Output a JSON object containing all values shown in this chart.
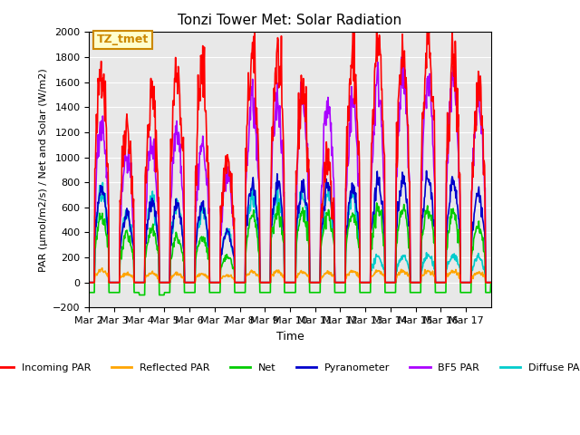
{
  "title": "Tonzi Tower Met: Solar Radiation",
  "xlabel": "Time",
  "ylabel": "PAR (μmol/m2/s) / Net and Solar (W/m2)",
  "ylim": [
    -200,
    2000
  ],
  "yticks": [
    -200,
    0,
    200,
    400,
    600,
    800,
    1000,
    1200,
    1400,
    1600,
    1800,
    2000
  ],
  "xtick_labels": [
    "Mar 2",
    "Mar 3",
    "Mar 4",
    "Mar 5",
    "Mar 6",
    "Mar 7",
    "Mar 8",
    "Mar 9",
    "Mar 10",
    "Mar 11",
    "Mar 12",
    "Mar 13",
    "Mar 14",
    "Mar 15",
    "Mar 16",
    "Mar 17"
  ],
  "bg_color": "#e8e8e8",
  "annotation_label": "TZ_tmet",
  "annotation_color": "#cc8800",
  "annotation_bg": "#ffffcc",
  "series": {
    "incoming_par": {
      "color": "#ff0000",
      "label": "Incoming PAR",
      "lw": 1.2
    },
    "reflected_par": {
      "color": "#ffa500",
      "label": "Reflected PAR",
      "lw": 1.2
    },
    "net": {
      "color": "#00cc00",
      "label": "Net",
      "lw": 1.2
    },
    "pyranometer": {
      "color": "#0000cc",
      "label": "Pyranometer",
      "lw": 1.2
    },
    "bf5_par": {
      "color": "#aa00ff",
      "label": "BF5 PAR",
      "lw": 1.2
    },
    "diffuse_par": {
      "color": "#00cccc",
      "label": "Diffuse PAR",
      "lw": 1.2
    }
  },
  "day_peaks": {
    "incoming": [
      1740,
      1270,
      1490,
      1720,
      1710,
      980,
      1800,
      1800,
      1560,
      980,
      1810,
      1870,
      1850,
      1920,
      1780,
      1500
    ],
    "reflected": [
      100,
      70,
      75,
      70,
      70,
      55,
      85,
      90,
      85,
      80,
      90,
      90,
      90,
      90,
      90,
      80
    ],
    "net": [
      530,
      380,
      440,
      370,
      370,
      210,
      540,
      580,
      560,
      550,
      560,
      585,
      600,
      595,
      570,
      450
    ],
    "pyranometer": [
      750,
      550,
      660,
      610,
      600,
      400,
      780,
      770,
      760,
      780,
      770,
      810,
      810,
      820,
      800,
      700
    ],
    "bf5_par": [
      1300,
      1020,
      1100,
      1250,
      1100,
      870,
      1460,
      1460,
      1450,
      1420,
      1450,
      1600,
      1620,
      1620,
      1620,
      1450
    ],
    "diffuse_par": [
      720,
      540,
      660,
      610,
      600,
      400,
      690,
      700,
      680,
      680,
      700,
      200,
      210,
      215,
      220,
      200
    ],
    "net_night": [
      -80,
      -80,
      -100,
      -80,
      -80,
      -80,
      -80,
      -80,
      -80,
      -80,
      -80,
      -80,
      -80,
      -80,
      -80,
      -80
    ]
  }
}
